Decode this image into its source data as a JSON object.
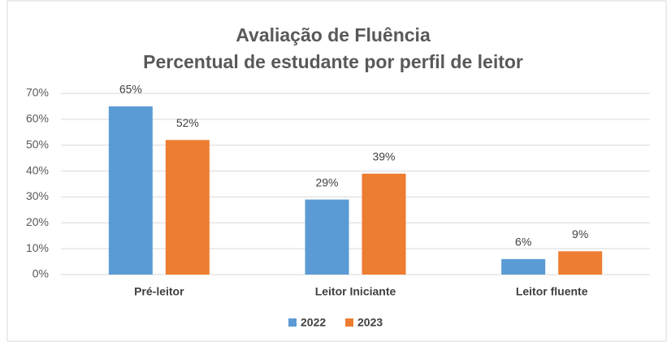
{
  "chart_data": {
    "type": "bar",
    "title": "Avaliação de Fluência",
    "subtitle": "Percentual de estudante por perfil de leitor",
    "categories": [
      "Pré-leitor",
      "Leitor Iniciante",
      "Leitor fluente"
    ],
    "series": [
      {
        "name": "2022",
        "color": "#5b9bd5",
        "values": [
          65,
          29,
          6
        ],
        "value_labels": [
          "65%",
          "29%",
          "6%"
        ]
      },
      {
        "name": "2023",
        "color": "#ed7d31",
        "values": [
          52,
          39,
          9
        ],
        "value_labels": [
          "52%",
          "39%",
          "9%"
        ]
      }
    ],
    "ylim": [
      0,
      70
    ],
    "yticks": [
      {
        "value": 0,
        "label": "0%"
      },
      {
        "value": 10,
        "label": "10%"
      },
      {
        "value": 20,
        "label": "20%"
      },
      {
        "value": 30,
        "label": "30%"
      },
      {
        "value": 40,
        "label": "40%"
      },
      {
        "value": 50,
        "label": "50%"
      },
      {
        "value": 60,
        "label": "60%"
      },
      {
        "value": 70,
        "label": "70%"
      }
    ],
    "grid": true,
    "legend": "bottom"
  }
}
